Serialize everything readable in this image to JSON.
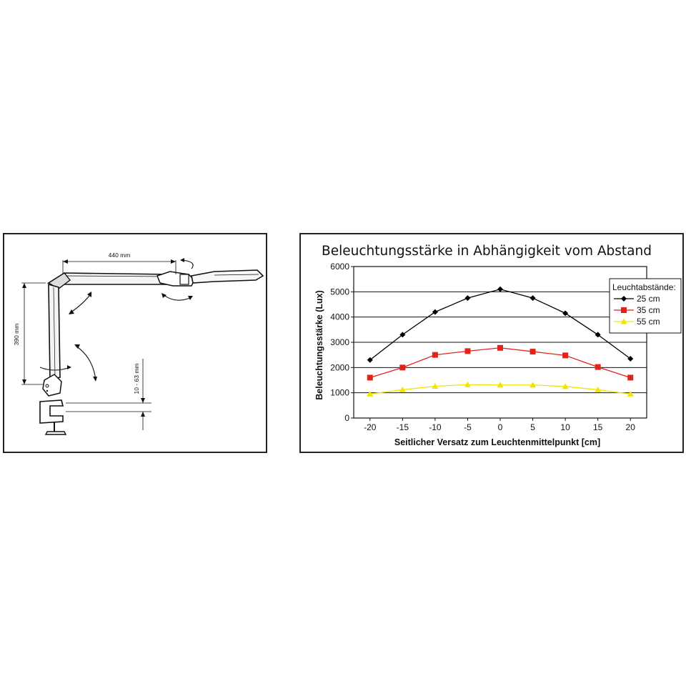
{
  "lamp": {
    "dim_width": "440 mm",
    "dim_height": "390 mm",
    "dim_clamp": "10 - 63 mm"
  },
  "chart_data": {
    "type": "line",
    "title": "Beleuchtungsstärke in Abhängigkeit vom Abstand",
    "xlabel": "Seitlicher Versatz zum Leuchtenmittelpunkt [cm]",
    "ylabel": "Beleuchtungsstärke (Lux)",
    "x": [
      -20,
      -15,
      -10,
      -5,
      0,
      5,
      10,
      15,
      20
    ],
    "x_ticks": [
      "-20",
      "-15",
      "-10",
      "-5",
      "0",
      "5",
      "10",
      "15",
      "20"
    ],
    "ylim": [
      0,
      6000
    ],
    "y_ticks": [
      "0",
      "1000",
      "2000",
      "3000",
      "4000",
      "5000",
      "6000"
    ],
    "grid": "horizontal",
    "legend_title": "Leuchtabstände:",
    "legend_position": "top-right",
    "series": [
      {
        "name": "25 cm",
        "color": "#000000",
        "marker": "diamond",
        "values": [
          2300,
          3300,
          4200,
          4750,
          5100,
          4750,
          4150,
          3300,
          2350
        ]
      },
      {
        "name": "35 cm",
        "color": "#e2231a",
        "marker": "square",
        "values": [
          1600,
          2000,
          2500,
          2650,
          2780,
          2630,
          2480,
          2020,
          1600
        ]
      },
      {
        "name": "55 cm",
        "color": "#f2e400",
        "marker": "triangle",
        "values": [
          950,
          1120,
          1260,
          1320,
          1310,
          1310,
          1250,
          1120,
          950
        ]
      }
    ]
  }
}
